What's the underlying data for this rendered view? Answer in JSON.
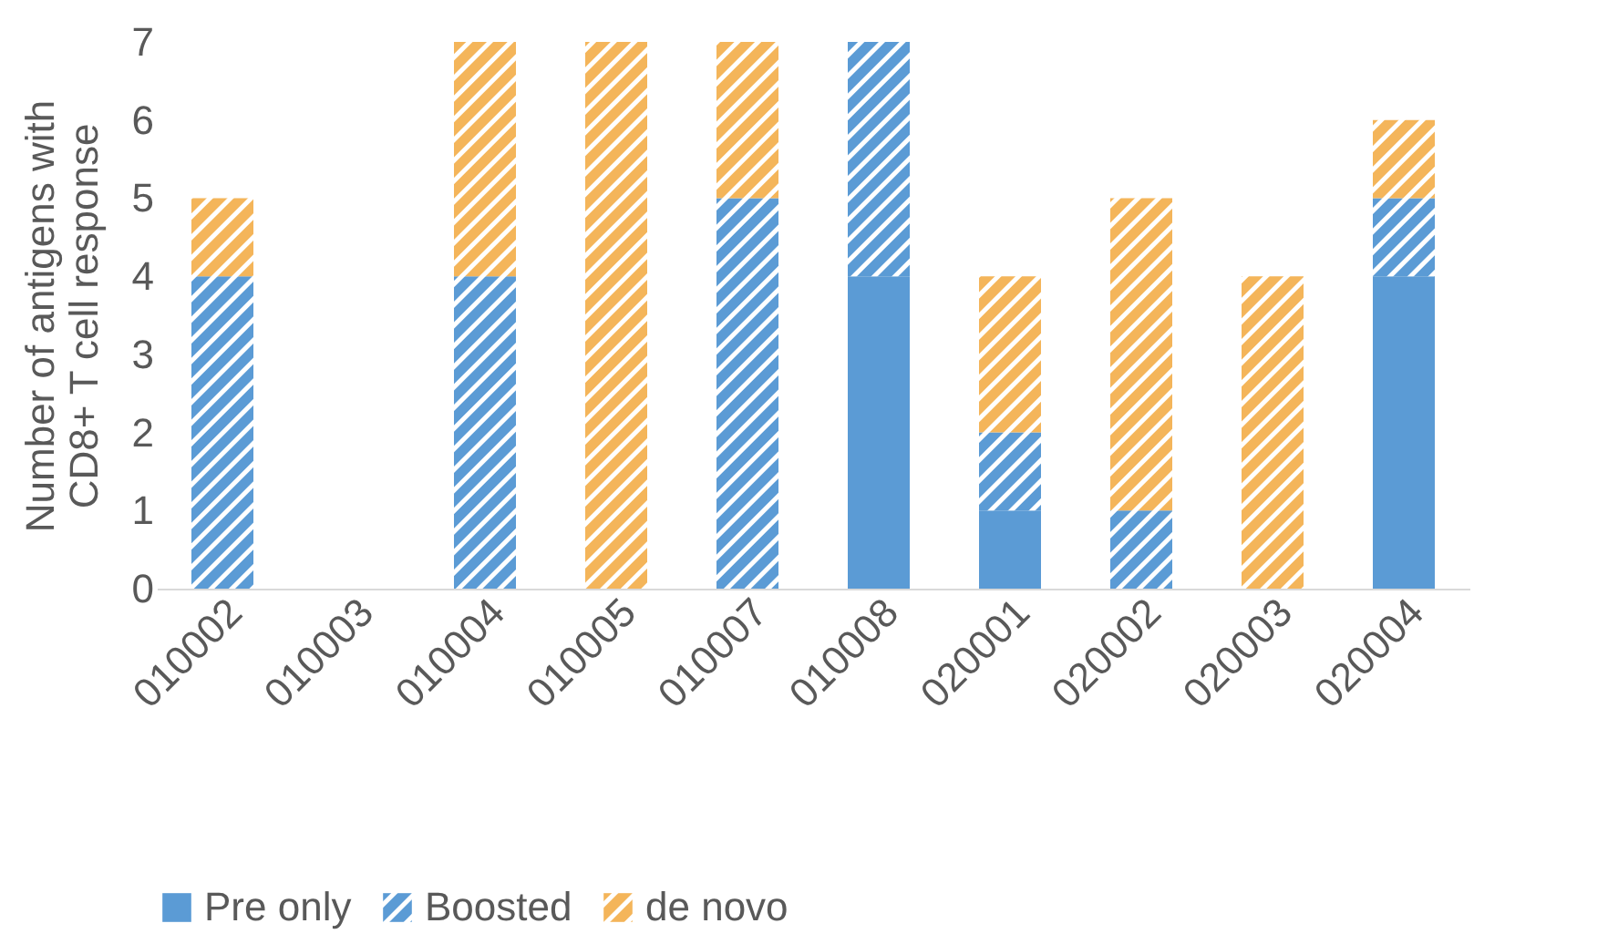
{
  "chart_data": {
    "type": "bar",
    "stacked": true,
    "ylabel": "Number of antigens with CD8+ T cell response",
    "categories": [
      "010002",
      "010003",
      "010004",
      "010005",
      "010007",
      "010008",
      "020001",
      "020002",
      "020003",
      "020004"
    ],
    "series": [
      {
        "name": "Pre only",
        "color": "#5b9bd5",
        "values": [
          0,
          0,
          0,
          0,
          0,
          4,
          1,
          0,
          0,
          4
        ]
      },
      {
        "name": "Boosted",
        "color": "#5b9bd5",
        "values": [
          4,
          0,
          4,
          0,
          5,
          3,
          1,
          1,
          0,
          1
        ]
      },
      {
        "name": "de novo",
        "color": "#f4b55a",
        "values": [
          1,
          0,
          3,
          7,
          2,
          0,
          2,
          4,
          4,
          1
        ]
      }
    ],
    "ylim": [
      0,
      7
    ],
    "yticks": [
      0,
      1,
      2,
      3,
      4,
      5,
      6,
      7
    ],
    "grid": false,
    "legend": "bottom"
  }
}
